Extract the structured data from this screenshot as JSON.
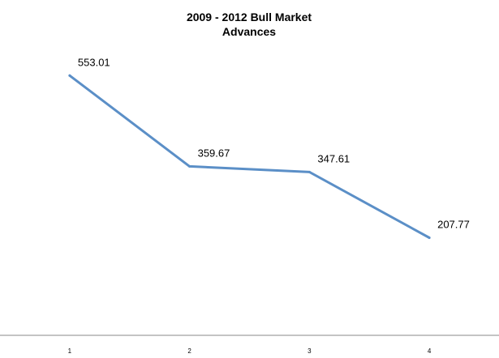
{
  "chart_data": {
    "type": "line",
    "title_lines": [
      "2009 - 2012 Bull Market",
      "Advances"
    ],
    "categories": [
      "1",
      "2",
      "3",
      "4"
    ],
    "values": [
      553.01,
      359.67,
      347.61,
      207.77
    ],
    "data_labels": [
      "553.01",
      "359.67",
      "347.61",
      "207.77"
    ],
    "xlabel": "",
    "ylabel": "",
    "ylim": [
      0,
      700
    ],
    "grid": false,
    "legend": "none",
    "line_color": "#5b8fc7",
    "axis_color": "#888888"
  }
}
